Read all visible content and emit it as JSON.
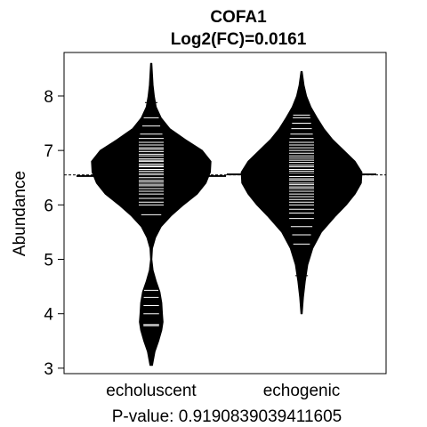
{
  "chart_data": {
    "type": "beanplot",
    "title": "COFA1",
    "subtitle": "Log2(FC)=0.0161",
    "xlabel": "P-value: 0.9190839039411605",
    "ylabel": "Abundance",
    "ylim": [
      2.9,
      8.8
    ],
    "yticks": [
      3,
      4,
      5,
      6,
      7,
      8
    ],
    "overall_mean": 6.55,
    "grid": false,
    "colors": {
      "bean_fill": "#000000",
      "beanline": "#ffffff",
      "background": "#ffffff"
    },
    "categories": [
      "echoluscent",
      "echogenic"
    ],
    "series": [
      {
        "name": "echoluscent",
        "mean": 6.53,
        "range": [
          3.05,
          8.6
        ],
        "density": [
          [
            3.05,
            0.02
          ],
          [
            3.3,
            0.06
          ],
          [
            3.5,
            0.12
          ],
          [
            3.7,
            0.17
          ],
          [
            3.85,
            0.19
          ],
          [
            4.0,
            0.18
          ],
          [
            4.2,
            0.17
          ],
          [
            4.4,
            0.14
          ],
          [
            4.6,
            0.08
          ],
          [
            4.8,
            0.03
          ],
          [
            5.0,
            0.01
          ],
          [
            5.2,
            0.02
          ],
          [
            5.4,
            0.07
          ],
          [
            5.6,
            0.16
          ],
          [
            5.8,
            0.32
          ],
          [
            6.0,
            0.52
          ],
          [
            6.2,
            0.74
          ],
          [
            6.4,
            0.88
          ],
          [
            6.6,
            0.95
          ],
          [
            6.8,
            0.96
          ],
          [
            7.0,
            0.82
          ],
          [
            7.2,
            0.55
          ],
          [
            7.4,
            0.3
          ],
          [
            7.6,
            0.16
          ],
          [
            7.8,
            0.08
          ],
          [
            8.0,
            0.05
          ],
          [
            8.2,
            0.03
          ],
          [
            8.4,
            0.02
          ],
          [
            8.6,
            0.01
          ]
        ],
        "observations": [
          3.78,
          3.8,
          4.0,
          4.15,
          4.3,
          4.43,
          5.82,
          6.0,
          6.05,
          6.12,
          6.2,
          6.25,
          6.3,
          6.35,
          6.38,
          6.42,
          6.45,
          6.5,
          6.55,
          6.58,
          6.62,
          6.65,
          6.7,
          6.72,
          6.75,
          6.8,
          6.82,
          6.85,
          6.9,
          6.93,
          6.98,
          7.02,
          7.05,
          7.1,
          7.15,
          7.22,
          7.3,
          7.45,
          7.6,
          7.88
        ]
      },
      {
        "name": "echogenic",
        "mean": 6.56,
        "range": [
          4.0,
          8.45
        ],
        "density": [
          [
            4.0,
            0.01
          ],
          [
            4.3,
            0.03
          ],
          [
            4.6,
            0.06
          ],
          [
            4.9,
            0.1
          ],
          [
            5.2,
            0.18
          ],
          [
            5.5,
            0.32
          ],
          [
            5.8,
            0.55
          ],
          [
            6.0,
            0.72
          ],
          [
            6.2,
            0.86
          ],
          [
            6.4,
            0.96
          ],
          [
            6.6,
            0.97
          ],
          [
            6.8,
            0.86
          ],
          [
            7.0,
            0.68
          ],
          [
            7.2,
            0.5
          ],
          [
            7.4,
            0.36
          ],
          [
            7.6,
            0.25
          ],
          [
            7.8,
            0.15
          ],
          [
            8.0,
            0.08
          ],
          [
            8.2,
            0.04
          ],
          [
            8.45,
            0.01
          ]
        ],
        "observations": [
          4.7,
          5.28,
          5.45,
          5.6,
          5.75,
          5.85,
          5.92,
          6.0,
          6.05,
          6.1,
          6.15,
          6.2,
          6.25,
          6.3,
          6.33,
          6.37,
          6.4,
          6.45,
          6.48,
          6.52,
          6.55,
          6.58,
          6.62,
          6.65,
          6.7,
          6.73,
          6.78,
          6.82,
          6.86,
          6.9,
          6.95,
          7.0,
          7.05,
          7.1,
          7.15,
          7.22,
          7.3,
          7.4,
          7.5,
          7.6,
          7.65
        ]
      }
    ]
  }
}
